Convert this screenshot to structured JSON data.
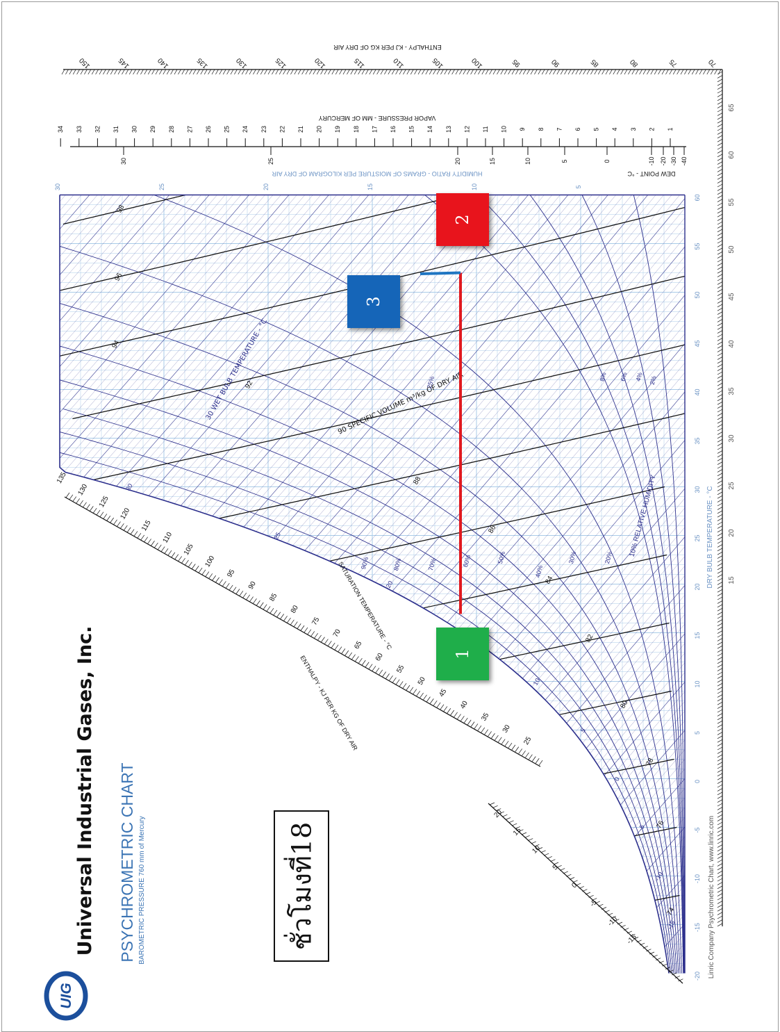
{
  "company": {
    "name": "Universal Industrial Gases, Inc.",
    "logo_text": "UIG",
    "chart_title": "PSYCHROMETRIC CHART",
    "pressure_note": "BAROMETRIC PRESSURE 760 mm of Mercury",
    "credit": "Linric Company Psychrometric Chart, www.linric.com"
  },
  "hour_label": "ชั่วโมงที่18",
  "markers": [
    {
      "label": "1",
      "color": "#1fae4a"
    },
    {
      "label": "2",
      "color": "#e8141c"
    },
    {
      "label": "3",
      "color": "#1565b8"
    }
  ],
  "process": {
    "sensible_heating": {
      "from_db": 17,
      "to_db": 52,
      "humidity_ratio": 11.2,
      "color": "#e0191f"
    },
    "humidification": {
      "to_db": 50,
      "to_w": 12.4,
      "color": "#1f76c2"
    }
  },
  "chart_data": {
    "type": "psychrometric",
    "axis_titles": {
      "dry_bulb": "DRY BULB TEMPERATURE - °C",
      "humidity_ratio": "HUMIDITY RATIO - GRAMS OF MOISTURE PER KILOGRAM OF DRY AIR",
      "vapor_pressure": "VAPOR PRESSURE - MM OF MERCURY",
      "dew_point": "DEW POINT - °C",
      "enthalpy_top": "ENTHALPY - KJ PER KG OF DRY AIR",
      "enthalpy_diag": "ENTHALPY - KJ PER KG OF DRY AIR",
      "saturation": "SATURATION TEMPERATURE - °C",
      "wet_bulb": "30 WET BULB TEMPERATURE - °C",
      "specific_volume": "90 SPECIFIC VOLUME m³/kg OF DRY AIR",
      "relative_humidity": "10% RELATIVE HUMIDITY"
    },
    "dry_bulb_ticks": [
      -20,
      -15,
      -10,
      -5,
      0,
      5,
      10,
      15,
      20,
      25,
      30,
      35,
      40,
      45,
      50,
      55,
      60
    ],
    "outer_db_ticks": [
      15,
      20,
      25,
      30,
      35,
      40,
      45,
      50,
      55,
      60,
      65
    ],
    "humidity_ratio_ticks": [
      5,
      10,
      15,
      20,
      25,
      30
    ],
    "vapor_pressure_ticks": [
      1,
      2,
      3,
      4,
      5,
      6,
      7,
      8,
      9,
      10,
      11,
      12,
      13,
      14,
      15,
      16,
      17,
      18,
      19,
      20,
      21,
      22,
      23,
      24,
      25,
      26,
      27,
      28,
      29,
      30,
      31,
      32,
      33,
      34
    ],
    "dew_point_ticks": [
      -40,
      -30,
      -20,
      -10,
      0,
      5,
      10,
      15,
      20,
      25,
      30
    ],
    "dew_point_small": [
      "-40",
      "-30",
      "-20",
      "-10",
      "0",
      "5"
    ],
    "top_enthalpy_ticks": [
      70,
      75,
      80,
      85,
      90,
      95,
      100,
      105,
      110,
      115,
      120,
      125,
      130,
      135,
      140,
      145,
      150
    ],
    "diag_enthalpy_ticks": [
      -15,
      -10,
      -5,
      0,
      5,
      10,
      15,
      20,
      25,
      30,
      35,
      40,
      45,
      50,
      55,
      60,
      65,
      70,
      75,
      80,
      85,
      90,
      95,
      100,
      105,
      110,
      115,
      120,
      125,
      130,
      135
    ],
    "saturation_ticks": [
      -15,
      -10,
      -5,
      0,
      5,
      10,
      15,
      20,
      25,
      30
    ],
    "rh_percent": [
      2,
      4,
      6,
      8,
      10,
      20,
      30,
      40,
      50,
      60,
      70,
      80,
      90
    ],
    "rh_labels": [
      "2%",
      "4%",
      "6%",
      "8%",
      "20%",
      "30%",
      "40%",
      "50%",
      "60%",
      "70%",
      "80%",
      "90%"
    ],
    "specific_volume_values": [
      0.74,
      0.76,
      0.78,
      0.8,
      0.82,
      0.84,
      0.86,
      0.88,
      0.9,
      0.92,
      0.94,
      0.96,
      0.98
    ],
    "specific_volume_labels": [
      "74",
      "76",
      "78",
      "80",
      "82",
      "84",
      "86",
      "88",
      "92",
      "94",
      "96",
      "98"
    ],
    "wet_bulb_labels": [
      "-15",
      "-10",
      "-5",
      "0",
      "5",
      "10",
      "15",
      "20",
      "25",
      "30"
    ],
    "rh_extra_label": "25%",
    "db_range": [
      -20,
      60
    ],
    "w_range": [
      0,
      30
    ],
    "colors": {
      "grid": "#a9cbe8",
      "lines": "#2c2f8c",
      "volume": "#111111",
      "axis_text": "#6b93c4"
    }
  }
}
